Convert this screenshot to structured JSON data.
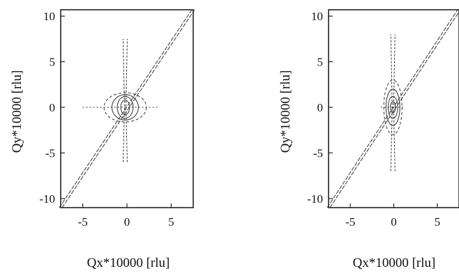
{
  "chart_data": [
    {
      "type": "contour",
      "title": "",
      "xlabel": "Qx*10000 [rlu]",
      "ylabel": "Qy*10000 [rlu]",
      "xlim": [
        -7.5,
        7.5
      ],
      "ylim": [
        -11,
        10.7
      ],
      "xticks": [
        -5,
        0,
        5
      ],
      "yticks": [
        -10,
        -5,
        0,
        5,
        10
      ],
      "grid": false,
      "features": {
        "peak": {
          "x": -0.2,
          "y": 0
        },
        "diagonal_streak": {
          "from": [
            -7.5,
            -11
          ],
          "to": [
            7.5,
            10.7
          ]
        },
        "vertical_streak_y_range": [
          -6,
          7.5
        ],
        "horizontal_streak_x_range": [
          -5,
          3.5
        ],
        "contour_levels": [
          {
            "rx": 0.5,
            "ry": 0.8
          },
          {
            "rx": 0.9,
            "ry": 1.2
          },
          {
            "rx": 1.5,
            "ry": 1.4
          },
          {
            "rx": 2.4,
            "ry": 1.6
          }
        ]
      }
    },
    {
      "type": "contour",
      "title": "",
      "xlabel": "Qx*10000 [rlu]",
      "ylabel": "Qy*10000 [rlu]",
      "xlim": [
        -7.5,
        7.5
      ],
      "ylim": [
        -11,
        10.7
      ],
      "xticks": [
        -5,
        0,
        5
      ],
      "yticks": [
        -10,
        -5,
        0,
        5,
        10
      ],
      "grid": false,
      "features": {
        "peak": {
          "x": -0.1,
          "y": 0
        },
        "diagonal_streak": {
          "from": [
            -7.5,
            -11
          ],
          "to": [
            7.5,
            10.7
          ]
        },
        "vertical_streak_y_range": [
          -7,
          8
        ],
        "horizontal_streak_x_range": [
          -1.5,
          1.2
        ],
        "contour_levels": [
          {
            "rx": 0.3,
            "ry": 0.6
          },
          {
            "rx": 0.55,
            "ry": 1.2
          },
          {
            "rx": 0.8,
            "ry": 2.0
          },
          {
            "rx": 1.05,
            "ry": 3.0
          }
        ]
      }
    }
  ]
}
